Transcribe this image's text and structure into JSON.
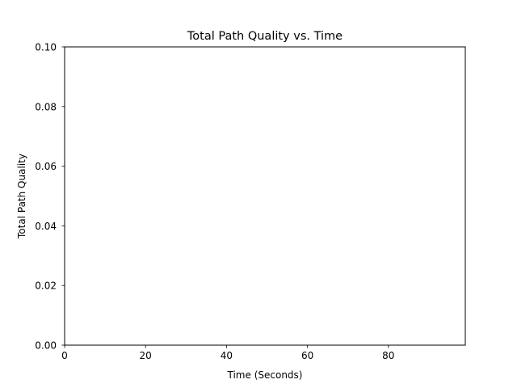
{
  "chart_data": {
    "type": "line",
    "title": "Total Path Quality vs. Time",
    "xlabel": "Time (Seconds)",
    "ylabel": "Total Path Quality",
    "xlim": [
      0,
      99
    ],
    "ylim": [
      0.0,
      0.1
    ],
    "x_ticks": [
      "0",
      "20",
      "40",
      "60",
      "80"
    ],
    "y_ticks": [
      "0.00",
      "0.02",
      "0.04",
      "0.06",
      "0.08",
      "0.10"
    ],
    "grid": false,
    "series": []
  }
}
